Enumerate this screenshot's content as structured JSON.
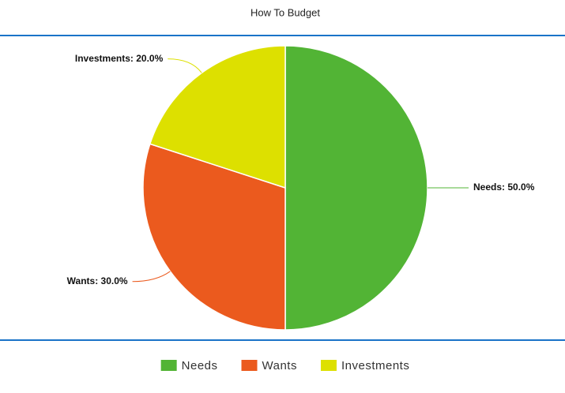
{
  "chart_data": {
    "type": "pie",
    "title": "How To Budget",
    "categories": [
      "Needs",
      "Wants",
      "Investments"
    ],
    "values": [
      50,
      30,
      20
    ],
    "value_labels": [
      "Needs: 50.0%",
      "Wants: 30.0%",
      "Investments: 20.0%"
    ],
    "colors": [
      "#52b435",
      "#eb5a1e",
      "#dde000"
    ],
    "legend": "bottom"
  }
}
